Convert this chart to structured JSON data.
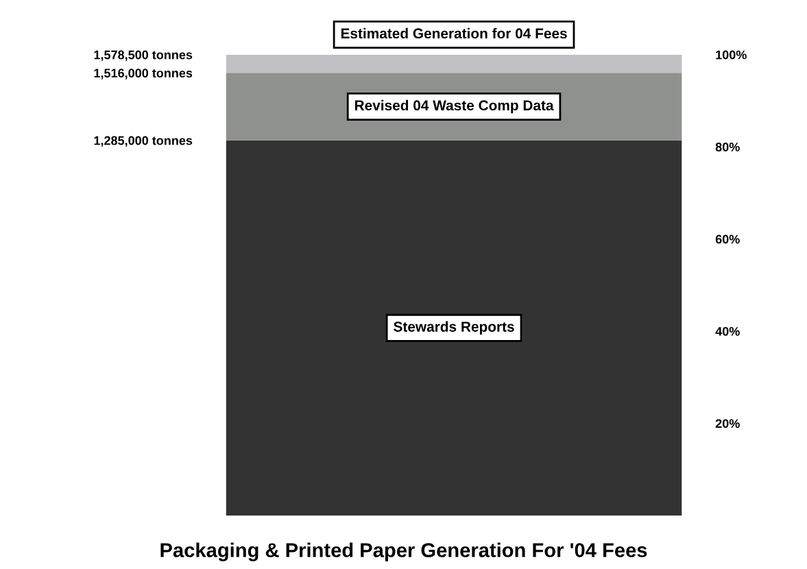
{
  "chart_data": {
    "type": "bar",
    "title": "Packaging & Printed Paper Generation For '04 Fees",
    "categories": [
      null
    ],
    "stacked": true,
    "series": [
      {
        "name": "Stewards Reports",
        "color": "#333333",
        "values": [
          1285000
        ]
      },
      {
        "name": "Revised 04 Waste Comp Data",
        "color": "#8f918e",
        "values": [
          231000
        ]
      },
      {
        "name": "Estimated Generation for 04 Fees",
        "color": "#c0bfc4",
        "values": [
          62500
        ]
      }
    ],
    "ylim": [
      0,
      1578500
    ],
    "yticks": [
      {
        "value": 1285000,
        "label": "1,285,000 tonnes"
      },
      {
        "value": 1516000,
        "label": "1,516,000 tonnes"
      },
      {
        "value": 1578500,
        "label": "1,578,500 tonnes"
      }
    ],
    "y2lim": [
      0,
      100
    ],
    "y2ticks": [
      {
        "value": 20,
        "label": "20%"
      },
      {
        "value": 40,
        "label": "40%"
      },
      {
        "value": 60,
        "label": "60%"
      },
      {
        "value": 80,
        "label": "80%"
      },
      {
        "value": 100,
        "label": "100%"
      }
    ],
    "grid": false,
    "legend": false
  }
}
